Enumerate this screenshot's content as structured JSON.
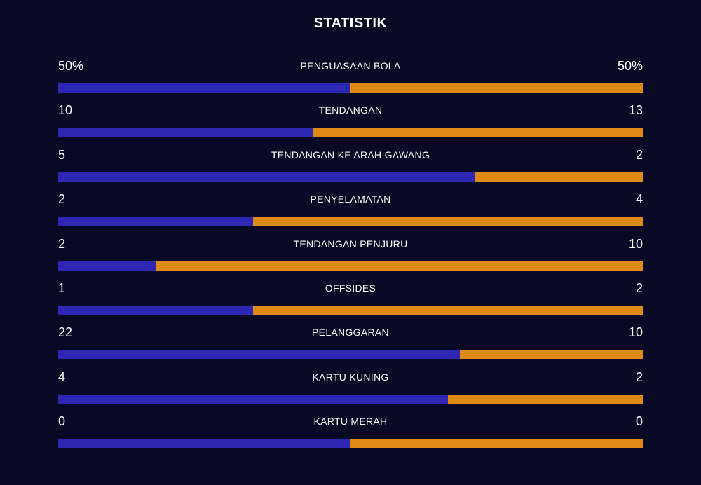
{
  "title": "STATISTIK",
  "colors": {
    "background": "#080a25",
    "home": "#2d27b4",
    "away": "#e08a16"
  },
  "stats": [
    {
      "label": "PENGUASAAN BOLA",
      "home": "50%",
      "away": "50%",
      "home_share": 0.5
    },
    {
      "label": "TENDANGAN",
      "home": "10",
      "away": "13",
      "home_share": 0.435
    },
    {
      "label": "TENDANGAN KE ARAH GAWANG",
      "home": "5",
      "away": "2",
      "home_share": 0.714
    },
    {
      "label": "PENYELAMATAN",
      "home": "2",
      "away": "4",
      "home_share": 0.333
    },
    {
      "label": "TENDANGAN PENJURU",
      "home": "2",
      "away": "10",
      "home_share": 0.167
    },
    {
      "label": "OFFSIDES",
      "home": "1",
      "away": "2",
      "home_share": 0.333
    },
    {
      "label": "PELANGGARAN",
      "home": "22",
      "away": "10",
      "home_share": 0.6875
    },
    {
      "label": "KARTU KUNING",
      "home": "4",
      "away": "2",
      "home_share": 0.667
    },
    {
      "label": "KARTU MERAH",
      "home": "0",
      "away": "0",
      "home_share": 0.5
    }
  ]
}
